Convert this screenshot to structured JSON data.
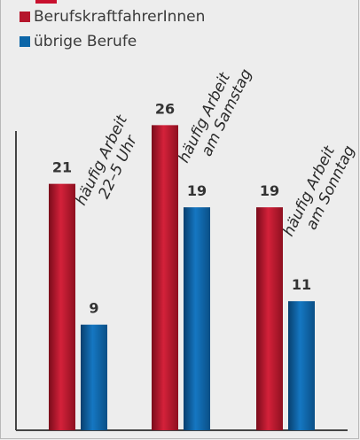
{
  "colors": {
    "red": "#b5152b",
    "blue": "#0d66a8",
    "background": "#ededed",
    "axis": "#444444"
  },
  "chart_data": {
    "type": "bar",
    "categories": [
      "häufig Arbeit\n22–5 Uhr",
      "häufig Arbeit\nam Samstag",
      "häufig Arbeit\nam Sonntag"
    ],
    "series": [
      {
        "name": "BerufskraftfahrerInnen",
        "values": [
          21,
          26,
          19
        ]
      },
      {
        "name": "übrige Berufe",
        "values": [
          9,
          19,
          11
        ]
      }
    ],
    "ylim": [
      0,
      36
    ],
    "grid": false,
    "legend_position": "top-left"
  }
}
